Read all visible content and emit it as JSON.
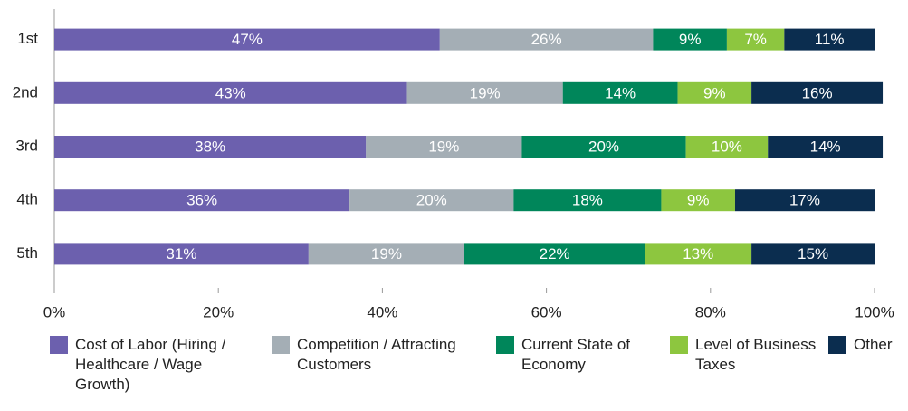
{
  "chart_data": {
    "type": "stacked-bar-horizontal",
    "categories": [
      "1st",
      "2nd",
      "3rd",
      "4th",
      "5th"
    ],
    "series": [
      {
        "name": "Cost of Labor (Hiring / Healthcare / Wage Growth)",
        "color": "#6c60ae",
        "values": [
          47,
          43,
          38,
          36,
          31
        ],
        "value_labels": [
          "47%",
          "43%",
          "38%",
          "36%",
          "31%"
        ]
      },
      {
        "name": "Competition / Attracting Customers",
        "color": "#a4aeb5",
        "values": [
          26,
          19,
          19,
          20,
          19
        ],
        "value_labels": [
          "26%",
          "19%",
          "19%",
          "20%",
          "19%"
        ]
      },
      {
        "name": "Current State of Economy",
        "color": "#00865a",
        "values": [
          9,
          14,
          20,
          18,
          22
        ],
        "value_labels": [
          "9%",
          "14%",
          "20%",
          "18%",
          "22%"
        ]
      },
      {
        "name": "Level of Business Taxes",
        "color": "#8dc63f",
        "values": [
          7,
          9,
          10,
          9,
          13
        ],
        "value_labels": [
          "7%",
          "9%",
          "10%",
          "9%",
          "13%"
        ]
      },
      {
        "name": "Other",
        "color": "#0b2d4f",
        "values": [
          11,
          16,
          14,
          17,
          15
        ],
        "value_labels": [
          "11%",
          "16%",
          "14%",
          "17%",
          "15%"
        ]
      }
    ],
    "xlim": [
      0,
      100
    ],
    "xticks": [
      {
        "value": 0,
        "label": "0%"
      },
      {
        "value": 20,
        "label": "20%"
      },
      {
        "value": 40,
        "label": "40%"
      },
      {
        "value": 60,
        "label": "60%"
      },
      {
        "value": 80,
        "label": "80%"
      },
      {
        "value": 100,
        "label": "100%"
      }
    ],
    "legend": "bottom"
  }
}
